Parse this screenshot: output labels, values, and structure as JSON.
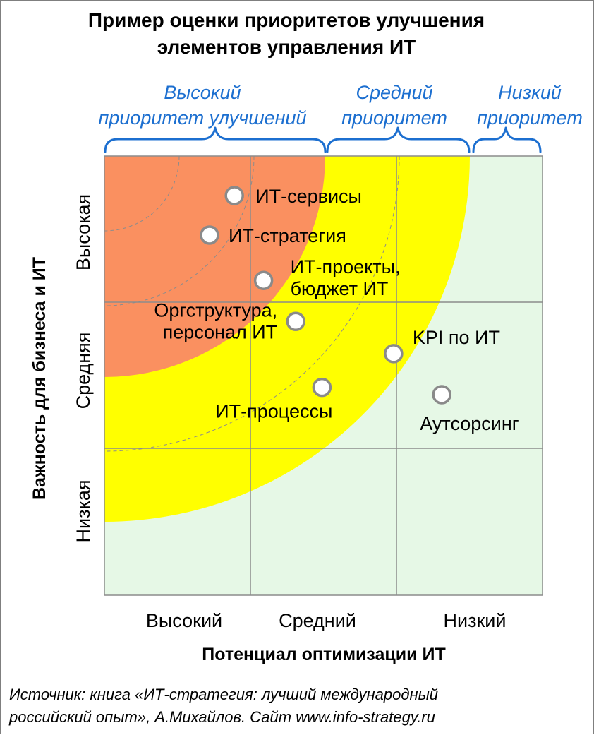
{
  "title": {
    "line1": "Пример оценки приоритетов улучшения",
    "line2": "элементов управления ИТ"
  },
  "priority_groups": [
    {
      "line1": "Высокий",
      "line2": "приоритет улучшений"
    },
    {
      "line1": "Средний",
      "line2": "приоритет"
    },
    {
      "line1": "Низкий",
      "line2": "приоритет"
    }
  ],
  "colors": {
    "high_zone": "#fa9060",
    "medium_zone": "#ffff00",
    "low_zone": "#e6f8e6",
    "priority_text": "#1c6fd0",
    "grid": "#8c8c8c",
    "point_stroke": "#8a8a8a"
  },
  "chart_data": {
    "type": "scatter",
    "x_axis": {
      "label": "Потенциал оптимизации ИТ",
      "categories": [
        "Высокий",
        "Средний",
        "Низкий"
      ],
      "range": [
        0,
        3
      ]
    },
    "y_axis": {
      "label": "Важность для бизнеса и ИТ",
      "categories": [
        "Низкая",
        "Средняя",
        "Высокая"
      ],
      "range": [
        0,
        3
      ]
    },
    "zones": [
      {
        "name": "Высокий приоритет улучшений",
        "color": "#fa9060"
      },
      {
        "name": "Средний приоритет",
        "color": "#ffff00"
      },
      {
        "name": "Низкий приоритет",
        "color": "#e6f8e6"
      }
    ],
    "points": [
      {
        "lines": [
          "ИТ-сервисы"
        ],
        "x": 0.89,
        "y": 2.73
      },
      {
        "lines": [
          "ИТ-стратегия"
        ],
        "x": 0.72,
        "y": 2.46
      },
      {
        "lines": [
          "ИТ-проекты,",
          "бюджет ИТ"
        ],
        "x": 1.09,
        "y": 2.15
      },
      {
        "lines": [
          "Оргструктура,",
          "персонал ИТ"
        ],
        "x": 1.31,
        "y": 1.87
      },
      {
        "lines": [
          "KPI по ИТ"
        ],
        "x": 1.98,
        "y": 1.65
      },
      {
        "lines": [
          "ИТ-процессы"
        ],
        "x": 1.49,
        "y": 1.42
      },
      {
        "lines": [
          "Аутсорсинг"
        ],
        "x": 2.31,
        "y": 1.37
      }
    ],
    "grid": true
  },
  "source": {
    "line1": "Источник: книга «ИТ-стратегия: лучший международный",
    "line2": "российский опыт», А.Михайлов.   Сайт www.info-strategy.ru"
  }
}
